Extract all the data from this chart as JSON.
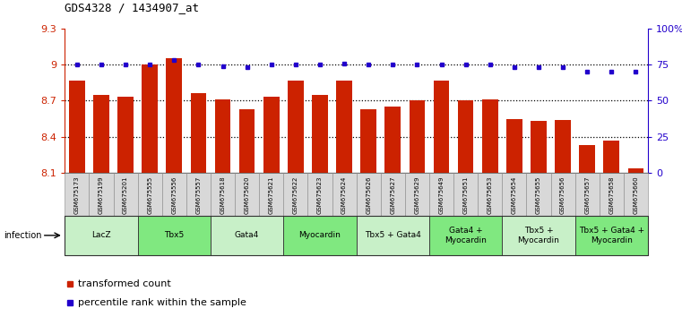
{
  "title": "GDS4328 / 1434907_at",
  "samples": [
    "GSM675173",
    "GSM675199",
    "GSM675201",
    "GSM675555",
    "GSM675556",
    "GSM675557",
    "GSM675618",
    "GSM675620",
    "GSM675621",
    "GSM675622",
    "GSM675623",
    "GSM675624",
    "GSM675626",
    "GSM675627",
    "GSM675629",
    "GSM675649",
    "GSM675651",
    "GSM675653",
    "GSM675654",
    "GSM675655",
    "GSM675656",
    "GSM675657",
    "GSM675658",
    "GSM675660"
  ],
  "bar_values": [
    8.87,
    8.75,
    8.73,
    9.0,
    9.05,
    8.76,
    8.71,
    8.63,
    8.73,
    8.87,
    8.75,
    8.87,
    8.63,
    8.65,
    8.7,
    8.87,
    8.7,
    8.71,
    8.55,
    8.53,
    8.54,
    8.33,
    8.37,
    8.14
  ],
  "percentile_values": [
    75,
    75,
    75,
    75,
    78,
    75,
    74,
    73,
    75,
    75,
    75,
    76,
    75,
    75,
    75,
    75,
    75,
    75,
    73,
    73,
    73,
    70,
    70,
    70
  ],
  "groups": [
    {
      "label": "LacZ",
      "start": 0,
      "end": 2,
      "color": "#c8f0c8"
    },
    {
      "label": "Tbx5",
      "start": 3,
      "end": 5,
      "color": "#80e880"
    },
    {
      "label": "Gata4",
      "start": 6,
      "end": 8,
      "color": "#c8f0c8"
    },
    {
      "label": "Myocardin",
      "start": 9,
      "end": 11,
      "color": "#80e880"
    },
    {
      "label": "Tbx5 + Gata4",
      "start": 12,
      "end": 14,
      "color": "#c8f0c8"
    },
    {
      "label": "Gata4 +\nMyocardin",
      "start": 15,
      "end": 17,
      "color": "#80e880"
    },
    {
      "label": "Tbx5 +\nMyocardin",
      "start": 18,
      "end": 20,
      "color": "#c8f0c8"
    },
    {
      "label": "Tbx5 + Gata4 +\nMyocardin",
      "start": 21,
      "end": 23,
      "color": "#80e880"
    }
  ],
  "ylim": [
    8.1,
    9.3
  ],
  "yticks": [
    8.1,
    8.4,
    8.7,
    9.0,
    9.3
  ],
  "ytick_labels": [
    "8.1",
    "8.4",
    "8.7",
    "9",
    "9.3"
  ],
  "y2ticks": [
    0,
    25,
    50,
    75,
    100
  ],
  "y2tick_labels": [
    "0",
    "25",
    "50",
    "75",
    "100%"
  ],
  "bar_color": "#cc2200",
  "dot_color": "#2200cc",
  "dotted_line_y": [
    9.0,
    8.7,
    8.4
  ],
  "left_axis_color": "#cc2200",
  "right_axis_color": "#2200cc",
  "infection_label": "infection",
  "legend_bar_label": "transformed count",
  "legend_dot_label": "percentile rank within the sample"
}
